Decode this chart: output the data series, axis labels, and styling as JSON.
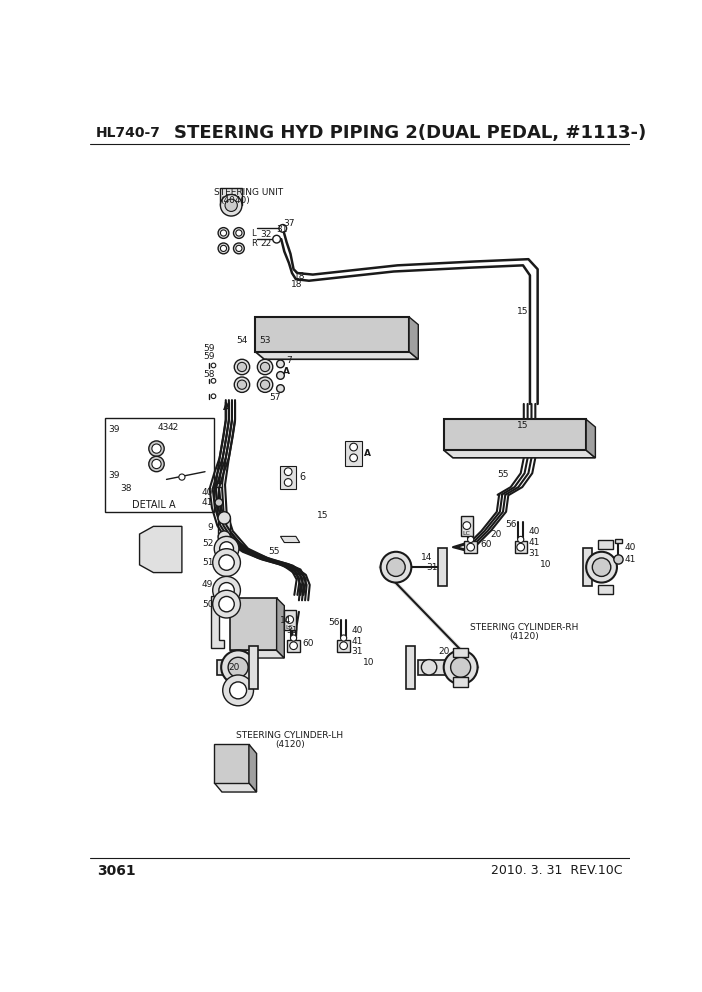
{
  "title": "STEERING HYD PIPING 2(DUAL PEDAL, #1113-)",
  "model": "HL740-7",
  "page": "3061",
  "date": "2010. 3. 31  REV.10C",
  "bg_color": "#ffffff",
  "lc": "#1a1a1a",
  "gray1": "#cccccc",
  "gray2": "#e0e0e0",
  "gray3": "#a0a0a0"
}
